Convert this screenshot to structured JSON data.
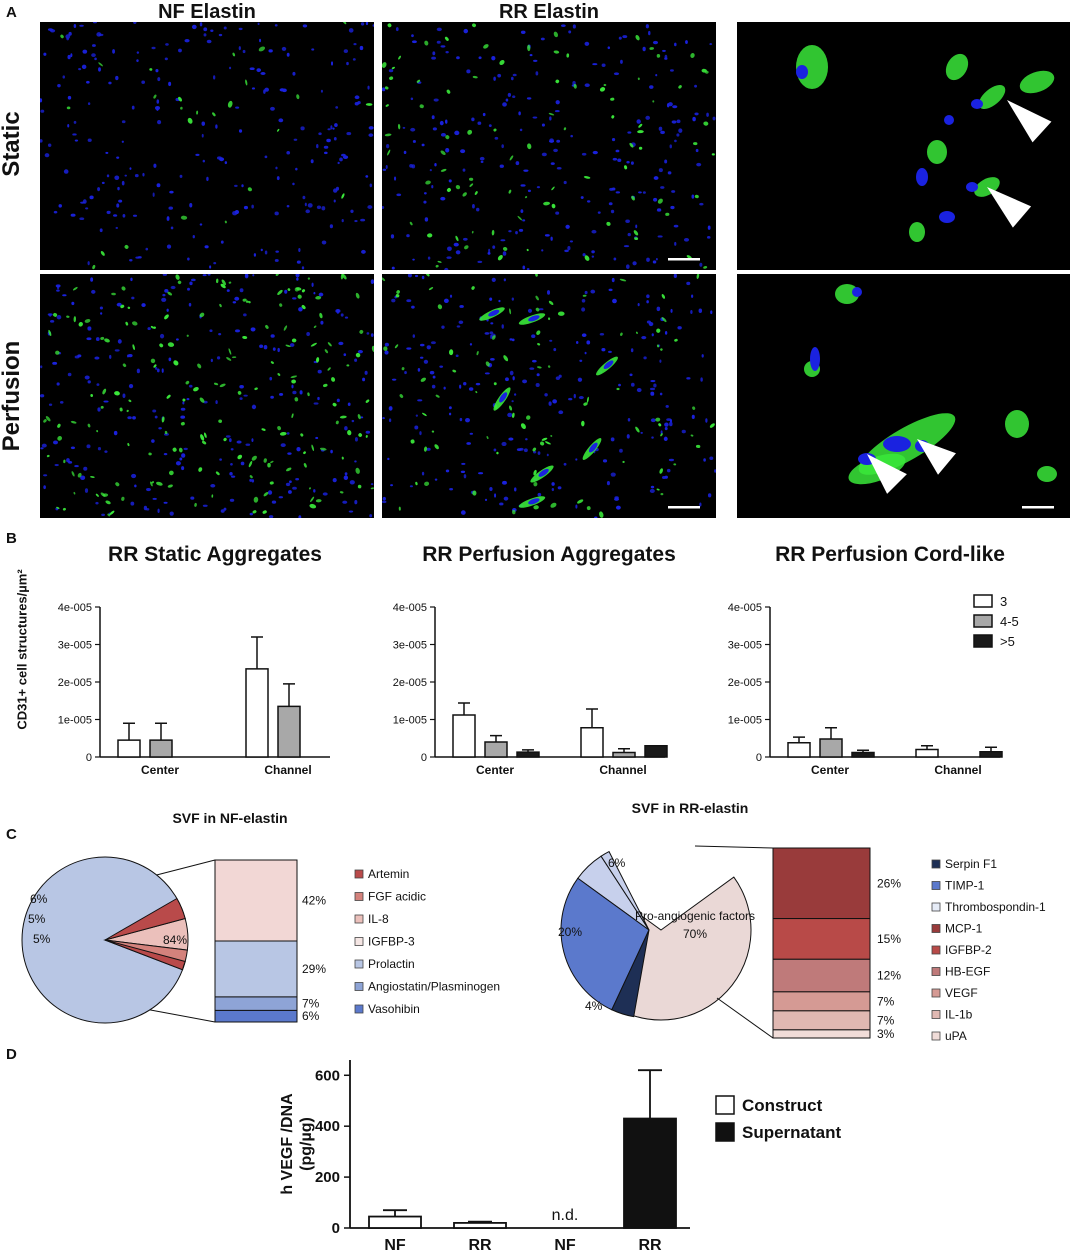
{
  "panel_a": {
    "label": "A",
    "col_titles": [
      "NF Elastin",
      "RR Elastin"
    ],
    "row_titles": [
      "Static",
      "Perfusion"
    ]
  },
  "panel_b": {
    "label": "B",
    "ylabel": "CD31+ cell  structures/µm²"
  },
  "panel_c": {
    "label": "C"
  },
  "panel_d": {
    "label": "D"
  },
  "colors": {
    "nuclei": "#1a22e0",
    "cd31": "#3ae83a",
    "bar_3": "#ffffff",
    "bar_45": "#a8a8a8",
    "bar_gt5": "#1a1a1a",
    "construct": "#ffffff",
    "supernatant": "#111111"
  },
  "chart_data": [
    {
      "type": "bar",
      "title": "RR Static Aggregates",
      "ylabel": "CD31+ cell  structures/µm²",
      "categories": [
        "Center",
        "Channel"
      ],
      "ylim": [
        0,
        4e-05
      ],
      "yticks": [
        "0",
        "1e-005",
        "2e-005",
        "3e-005",
        "4e-005"
      ],
      "series": [
        {
          "name": "3",
          "values": [
            4.5e-06,
            2.35e-05
          ],
          "errors": [
            4.5e-06,
            8.5e-06
          ]
        },
        {
          "name": "4-5",
          "values": [
            4.5e-06,
            1.35e-05
          ],
          "errors": [
            4.5e-06,
            6e-06
          ]
        },
        {
          "name": ">5",
          "values": [
            0,
            0
          ],
          "errors": [
            0,
            0
          ]
        }
      ]
    },
    {
      "type": "bar",
      "title": "RR Perfusion Aggregates",
      "categories": [
        "Center",
        "Channel"
      ],
      "ylim": [
        0,
        4e-05
      ],
      "yticks": [
        "0",
        "1e-005",
        "2e-005",
        "3e-005",
        "4e-005"
      ],
      "series": [
        {
          "name": "3",
          "values": [
            1.12e-05,
            7.8e-06
          ],
          "errors": [
            3.2e-06,
            5e-06
          ]
        },
        {
          "name": "4-5",
          "values": [
            4e-06,
            1.2e-06
          ],
          "errors": [
            1.7e-06,
            1e-06
          ]
        },
        {
          "name": ">5",
          "values": [
            1.3e-06,
            3e-06
          ],
          "errors": [
            6e-07,
            0
          ]
        }
      ]
    },
    {
      "type": "bar",
      "title": "RR Perfusion Cord-like",
      "categories": [
        "Center",
        "Channel"
      ],
      "ylim": [
        0,
        4e-05
      ],
      "yticks": [
        "0",
        "1e-005",
        "2e-005",
        "3e-005",
        "4e-005"
      ],
      "legend": [
        "3",
        "4-5",
        ">5"
      ],
      "series": [
        {
          "name": "3",
          "values": [
            3.8e-06,
            2e-06
          ],
          "errors": [
            1.5e-06,
            1e-06
          ]
        },
        {
          "name": "4-5",
          "values": [
            4.8e-06,
            0
          ],
          "errors": [
            3e-06,
            0
          ]
        },
        {
          "name": ">5",
          "values": [
            1.2e-06,
            1.4e-06
          ],
          "errors": [
            6e-07,
            1.2e-06
          ]
        }
      ]
    },
    {
      "type": "pie",
      "title": "SVF in NF-elastin",
      "slices": [
        {
          "label": "",
          "value": 84,
          "text": "84%"
        },
        {
          "label": "",
          "value": 6,
          "text": "6%"
        },
        {
          "label": "",
          "value": 5,
          "text": "5%"
        },
        {
          "label": "",
          "value": 5,
          "text": "5%"
        }
      ],
      "breakdown": [
        {
          "value": 42,
          "text": "42%",
          "color": "#f2d7d5"
        },
        {
          "value": 29,
          "text": "29%",
          "color": "#b8c6e4"
        },
        {
          "value": 7,
          "text": "7%",
          "color": "#8ea4d6"
        },
        {
          "value": 6,
          "text": "6%",
          "color": "#5b79cc"
        }
      ],
      "legend": [
        {
          "name": "Artemin",
          "color": "#b94a4a"
        },
        {
          "name": "FGF acidic",
          "color": "#d4827c"
        },
        {
          "name": "IL-8",
          "color": "#ebc0bb"
        },
        {
          "name": "IGFBP-3",
          "color": "#f5e6e4"
        },
        {
          "name": "Prolactin",
          "color": "#b8c6e4"
        },
        {
          "name": "Angiostatin/Plasminogen",
          "color": "#8ea4d6"
        },
        {
          "name": "Vasohibin",
          "color": "#5b79cc"
        }
      ]
    },
    {
      "type": "pie",
      "title": "SVF in RR-elastin",
      "slices": [
        {
          "label": "Pro-angiogenic factors",
          "value": 70,
          "text": "70%"
        },
        {
          "label": "",
          "value": 20,
          "text": "20%"
        },
        {
          "label": "",
          "value": 6,
          "text": "6%"
        },
        {
          "label": "",
          "value": 4,
          "text": "4%"
        }
      ],
      "breakdown": [
        {
          "value": 26,
          "text": "26%",
          "color": "#993b3b"
        },
        {
          "value": 15,
          "text": "15%",
          "color": "#b84a48"
        },
        {
          "value": 12,
          "text": "12%",
          "color": "#bf7a7a"
        },
        {
          "value": 7,
          "text": "7%",
          "color": "#d59a94"
        },
        {
          "value": 7,
          "text": "7%",
          "color": "#e0b8b2"
        },
        {
          "value": 3,
          "text": "3%",
          "color": "#f0dcd8"
        }
      ],
      "legend": [
        {
          "name": "Serpin F1",
          "color": "#1e2f55"
        },
        {
          "name": "TIMP-1",
          "color": "#5b79cc"
        },
        {
          "name": "Thrombospondin-1",
          "color": "#e6ecf7"
        },
        {
          "name": "MCP-1",
          "color": "#993b3b"
        },
        {
          "name": "IGFBP-2",
          "color": "#b84a48"
        },
        {
          "name": "HB-EGF",
          "color": "#bf7a7a"
        },
        {
          "name": "VEGF",
          "color": "#d59a94"
        },
        {
          "name": "IL-1b",
          "color": "#e0b8b2"
        },
        {
          "name": "uPA",
          "color": "#f0dcd8"
        }
      ]
    },
    {
      "type": "bar",
      "ylabel": "h VEGF /DNA\n(pg/µg)",
      "categories": [
        "NF",
        "RR",
        "NF",
        "RR"
      ],
      "ylim": [
        0,
        660
      ],
      "yticks": [
        "0",
        "200",
        "400",
        "600"
      ],
      "series": [
        {
          "name": "Construct",
          "values": [
            45,
            20,
            null,
            null
          ],
          "errors": [
            25,
            5,
            null,
            null
          ]
        },
        {
          "name": "Supernatant",
          "values": [
            null,
            null,
            0,
            430
          ],
          "errors": [
            null,
            null,
            null,
            190
          ]
        }
      ],
      "annotation": "n.d.",
      "legend": [
        "Construct",
        "Supernatant"
      ]
    }
  ]
}
